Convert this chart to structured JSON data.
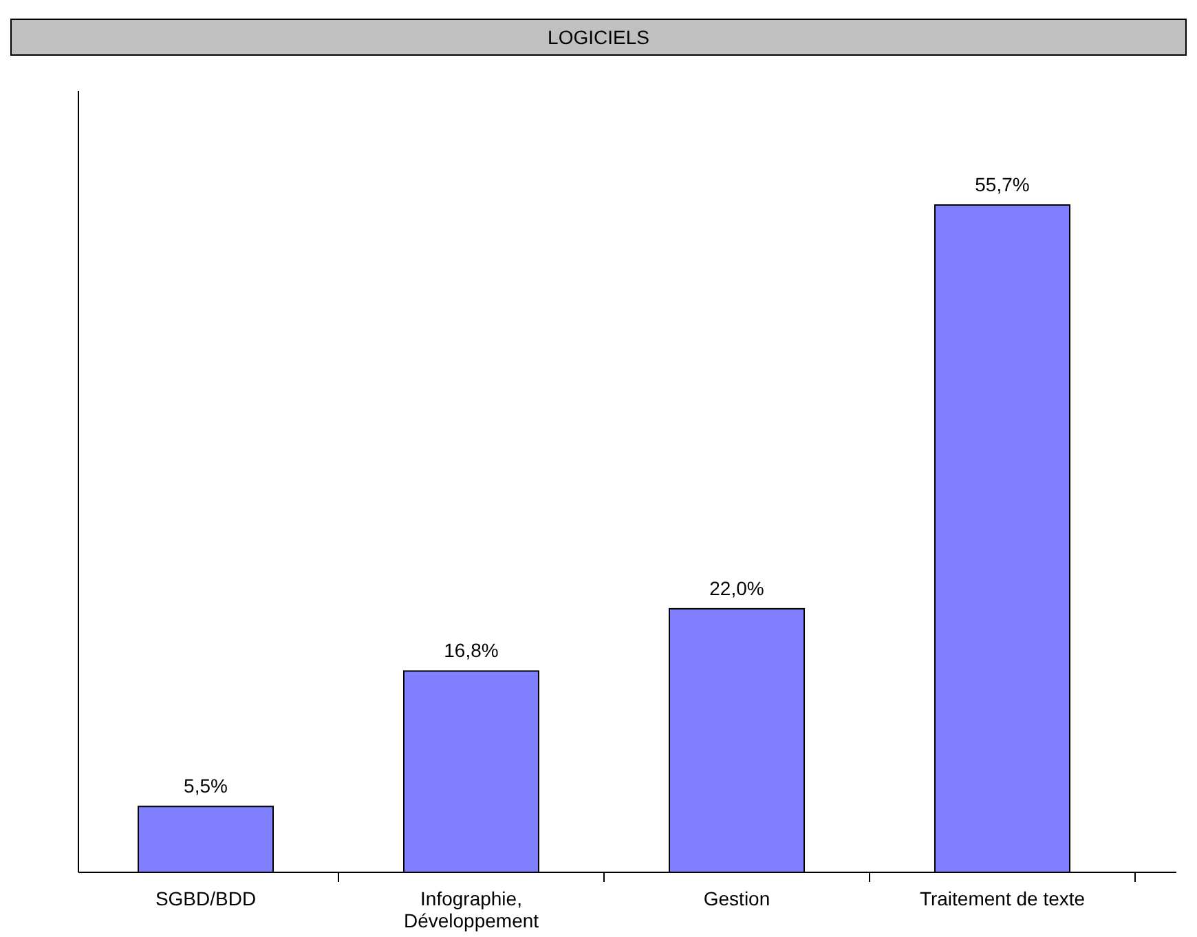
{
  "chart_data": {
    "type": "bar",
    "title": "LOGICIELS",
    "categories": [
      "SGBD/BDD",
      "Infographie, Développement",
      "Gestion",
      "Traitement de texte"
    ],
    "values": [
      5.5,
      16.8,
      22.0,
      55.7
    ],
    "value_labels": [
      "5,5%",
      "16,8%",
      "22,0%",
      "55,7%"
    ],
    "color": "#8080ff"
  }
}
